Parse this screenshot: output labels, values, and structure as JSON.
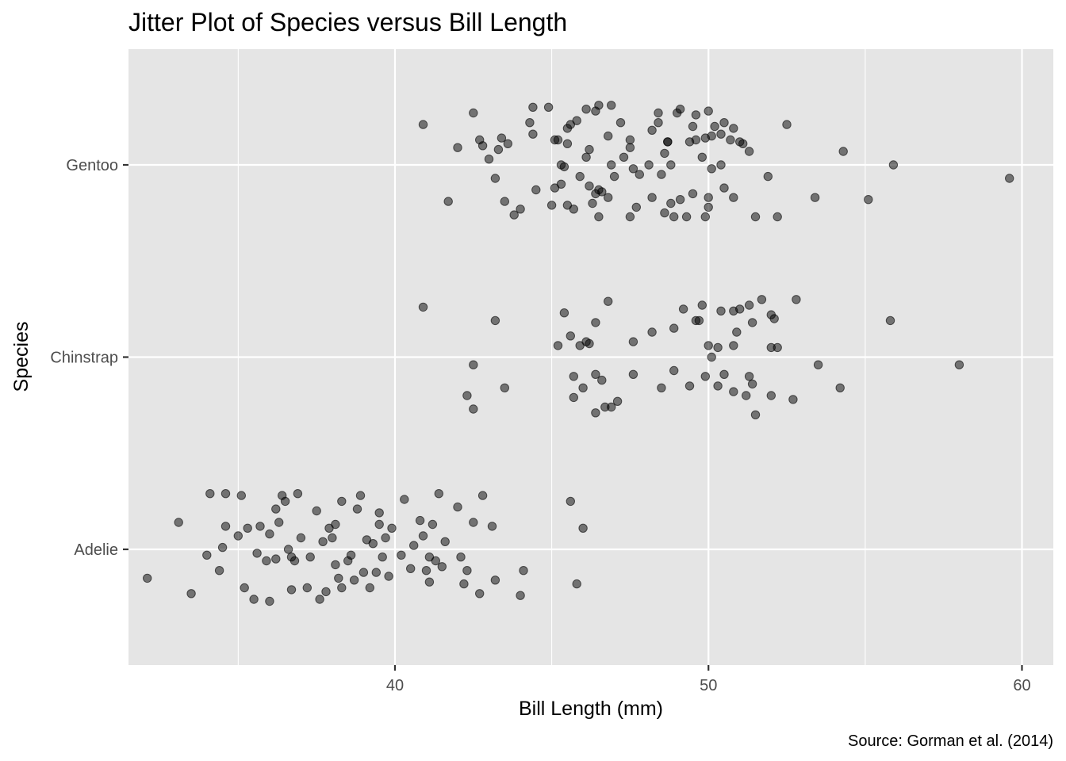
{
  "chart_data": {
    "type": "scatter",
    "title": "Jitter Plot of Species versus Bill Length",
    "xlabel": "Bill Length (mm)",
    "ylabel": "Species",
    "caption": "Source: Gorman et al. (2014)",
    "xlim": [
      31.5,
      61
    ],
    "x_ticks": [
      40,
      50,
      60
    ],
    "categories": [
      "Adelie",
      "Chinstrap",
      "Gentoo"
    ],
    "grid": true,
    "point_color": "#000000",
    "point_opacity": 0.5,
    "panel_background": "#e5e5e5",
    "grid_color": "#ffffff",
    "series": [
      {
        "category": "Gentoo",
        "points": [
          [
            40.9,
            0.21
          ],
          [
            42.5,
            0.27
          ],
          [
            44.4,
            0.3
          ],
          [
            44.9,
            0.3
          ],
          [
            46.5,
            0.31
          ],
          [
            46.9,
            0.31
          ],
          [
            46.1,
            0.29
          ],
          [
            46.4,
            0.28
          ],
          [
            48.4,
            0.27
          ],
          [
            49.0,
            0.27
          ],
          [
            49.1,
            0.29
          ],
          [
            50.0,
            0.28
          ],
          [
            49.6,
            0.26
          ],
          [
            48.4,
            0.22
          ],
          [
            47.2,
            0.22
          ],
          [
            45.6,
            0.21
          ],
          [
            45.8,
            0.23
          ],
          [
            44.3,
            0.22
          ],
          [
            44.4,
            0.16
          ],
          [
            45.5,
            0.19
          ],
          [
            46.8,
            0.15
          ],
          [
            48.2,
            0.18
          ],
          [
            48.7,
            0.12
          ],
          [
            49.5,
            0.2
          ],
          [
            50.2,
            0.2
          ],
          [
            50.5,
            0.22
          ],
          [
            50.8,
            0.19
          ],
          [
            51.1,
            0.11
          ],
          [
            52.5,
            0.21
          ],
          [
            54.3,
            0.07
          ],
          [
            55.9,
            0.0
          ],
          [
            59.6,
            -0.07
          ],
          [
            41.7,
            -0.19
          ],
          [
            42.0,
            0.09
          ],
          [
            42.7,
            0.13
          ],
          [
            42.8,
            0.1
          ],
          [
            43.0,
            0.03
          ],
          [
            43.2,
            -0.07
          ],
          [
            43.3,
            0.08
          ],
          [
            43.4,
            0.14
          ],
          [
            43.6,
            0.11
          ],
          [
            43.5,
            -0.19
          ],
          [
            43.8,
            -0.26
          ],
          [
            44.0,
            -0.23
          ],
          [
            44.5,
            -0.13
          ],
          [
            45.0,
            -0.21
          ],
          [
            45.1,
            0.13
          ],
          [
            45.2,
            0.13
          ],
          [
            45.3,
            0.0
          ],
          [
            45.4,
            -0.01
          ],
          [
            45.1,
            -0.12
          ],
          [
            45.3,
            -0.1
          ],
          [
            45.5,
            -0.21
          ],
          [
            45.7,
            -0.23
          ],
          [
            45.5,
            0.11
          ],
          [
            45.9,
            -0.06
          ],
          [
            46.1,
            0.04
          ],
          [
            46.2,
            0.08
          ],
          [
            46.2,
            -0.11
          ],
          [
            46.3,
            -0.2
          ],
          [
            46.5,
            -0.13
          ],
          [
            46.4,
            -0.15
          ],
          [
            46.5,
            -0.27
          ],
          [
            46.6,
            -0.14
          ],
          [
            46.9,
            0.0
          ],
          [
            47.0,
            -0.06
          ],
          [
            46.8,
            -0.17
          ],
          [
            47.3,
            0.04
          ],
          [
            47.5,
            0.09
          ],
          [
            47.5,
            0.13
          ],
          [
            47.6,
            -0.02
          ],
          [
            47.7,
            -0.22
          ],
          [
            47.8,
            -0.05
          ],
          [
            48.1,
            0.0
          ],
          [
            47.5,
            -0.27
          ],
          [
            48.2,
            -0.17
          ],
          [
            48.5,
            -0.05
          ],
          [
            48.6,
            0.06
          ],
          [
            48.7,
            0.12
          ],
          [
            48.8,
            0.0
          ],
          [
            48.8,
            -0.2
          ],
          [
            48.6,
            -0.25
          ],
          [
            48.9,
            -0.27
          ],
          [
            49.1,
            -0.18
          ],
          [
            49.3,
            -0.27
          ],
          [
            49.4,
            0.12
          ],
          [
            49.5,
            -0.15
          ],
          [
            49.6,
            0.13
          ],
          [
            49.8,
            0.04
          ],
          [
            49.9,
            0.14
          ],
          [
            50.1,
            0.15
          ],
          [
            50.0,
            -0.17
          ],
          [
            50.0,
            -0.22
          ],
          [
            50.1,
            -0.02
          ],
          [
            49.9,
            -0.27
          ],
          [
            50.4,
            0.16
          ],
          [
            50.4,
            0.0
          ],
          [
            50.5,
            -0.12
          ],
          [
            50.7,
            0.13
          ],
          [
            50.8,
            -0.17
          ],
          [
            51.0,
            0.12
          ],
          [
            51.3,
            0.07
          ],
          [
            51.5,
            -0.27
          ],
          [
            51.9,
            -0.06
          ],
          [
            52.2,
            -0.27
          ],
          [
            53.4,
            -0.17
          ],
          [
            55.1,
            -0.18
          ]
        ]
      },
      {
        "category": "Chinstrap",
        "points": [
          [
            40.9,
            0.26
          ],
          [
            43.2,
            0.19
          ],
          [
            42.5,
            -0.04
          ],
          [
            42.3,
            -0.2
          ],
          [
            42.5,
            -0.27
          ],
          [
            43.5,
            -0.16
          ],
          [
            45.2,
            0.06
          ],
          [
            45.4,
            0.23
          ],
          [
            45.6,
            0.11
          ],
          [
            45.7,
            -0.1
          ],
          [
            45.7,
            -0.21
          ],
          [
            45.9,
            0.06
          ],
          [
            46.0,
            -0.16
          ],
          [
            46.2,
            0.07
          ],
          [
            46.1,
            0.08
          ],
          [
            46.4,
            0.18
          ],
          [
            46.4,
            -0.09
          ],
          [
            46.4,
            -0.29
          ],
          [
            46.6,
            -0.12
          ],
          [
            46.7,
            -0.26
          ],
          [
            46.8,
            0.29
          ],
          [
            46.9,
            -0.26
          ],
          [
            47.1,
            -0.23
          ],
          [
            47.6,
            0.08
          ],
          [
            47.6,
            -0.09
          ],
          [
            48.2,
            0.13
          ],
          [
            48.5,
            -0.16
          ],
          [
            48.9,
            0.15
          ],
          [
            48.9,
            -0.07
          ],
          [
            49.2,
            0.25
          ],
          [
            49.4,
            -0.15
          ],
          [
            49.6,
            0.19
          ],
          [
            49.7,
            0.19
          ],
          [
            49.8,
            0.27
          ],
          [
            49.9,
            -0.1
          ],
          [
            50.0,
            0.06
          ],
          [
            50.1,
            0.0
          ],
          [
            50.3,
            0.05
          ],
          [
            50.3,
            -0.15
          ],
          [
            50.4,
            0.24
          ],
          [
            50.5,
            -0.09
          ],
          [
            50.8,
            0.24
          ],
          [
            50.8,
            0.06
          ],
          [
            50.8,
            -0.18
          ],
          [
            50.9,
            0.13
          ],
          [
            51.0,
            0.25
          ],
          [
            51.2,
            -0.2
          ],
          [
            51.3,
            0.27
          ],
          [
            51.3,
            -0.1
          ],
          [
            51.4,
            0.18
          ],
          [
            51.4,
            -0.14
          ],
          [
            51.5,
            -0.3
          ],
          [
            51.7,
            0.3
          ],
          [
            52.0,
            0.22
          ],
          [
            52.1,
            0.2
          ],
          [
            52.0,
            0.05
          ],
          [
            52.2,
            0.05
          ],
          [
            52.0,
            -0.2
          ],
          [
            52.7,
            -0.22
          ],
          [
            52.8,
            0.3
          ],
          [
            53.5,
            -0.04
          ],
          [
            54.2,
            -0.16
          ],
          [
            55.8,
            0.19
          ],
          [
            58.0,
            -0.04
          ]
        ]
      },
      {
        "category": "Adelie",
        "points": [
          [
            32.1,
            -0.15
          ],
          [
            33.1,
            0.14
          ],
          [
            33.5,
            -0.23
          ],
          [
            34.0,
            -0.03
          ],
          [
            34.1,
            0.29
          ],
          [
            34.4,
            -0.11
          ],
          [
            34.5,
            0.01
          ],
          [
            34.6,
            0.12
          ],
          [
            34.6,
            0.29
          ],
          [
            35.0,
            0.07
          ],
          [
            35.1,
            0.28
          ],
          [
            35.2,
            -0.2
          ],
          [
            35.3,
            0.11
          ],
          [
            35.5,
            -0.26
          ],
          [
            35.6,
            -0.02
          ],
          [
            35.7,
            0.12
          ],
          [
            35.9,
            -0.06
          ],
          [
            36.0,
            0.08
          ],
          [
            36.0,
            -0.27
          ],
          [
            36.2,
            -0.05
          ],
          [
            36.2,
            0.21
          ],
          [
            36.3,
            0.14
          ],
          [
            36.4,
            0.28
          ],
          [
            36.5,
            0.25
          ],
          [
            36.6,
            0.0
          ],
          [
            36.7,
            -0.04
          ],
          [
            36.7,
            -0.21
          ],
          [
            36.8,
            -0.06
          ],
          [
            36.9,
            0.29
          ],
          [
            37.0,
            0.06
          ],
          [
            37.2,
            -0.2
          ],
          [
            37.3,
            -0.04
          ],
          [
            37.5,
            0.2
          ],
          [
            37.6,
            -0.26
          ],
          [
            37.7,
            0.04
          ],
          [
            37.8,
            -0.22
          ],
          [
            37.9,
            0.11
          ],
          [
            38.0,
            0.06
          ],
          [
            38.1,
            0.13
          ],
          [
            38.1,
            -0.08
          ],
          [
            38.2,
            -0.15
          ],
          [
            38.3,
            -0.2
          ],
          [
            38.3,
            0.25
          ],
          [
            38.5,
            -0.06
          ],
          [
            38.6,
            -0.03
          ],
          [
            38.7,
            -0.16
          ],
          [
            38.8,
            0.21
          ],
          [
            38.9,
            0.28
          ],
          [
            39.0,
            -0.12
          ],
          [
            39.1,
            0.05
          ],
          [
            39.2,
            -0.2
          ],
          [
            39.3,
            0.03
          ],
          [
            39.4,
            -0.12
          ],
          [
            39.5,
            0.13
          ],
          [
            39.5,
            0.19
          ],
          [
            39.6,
            -0.04
          ],
          [
            39.7,
            0.06
          ],
          [
            39.8,
            -0.14
          ],
          [
            39.9,
            0.11
          ],
          [
            40.2,
            -0.03
          ],
          [
            40.3,
            0.26
          ],
          [
            40.5,
            -0.1
          ],
          [
            40.6,
            0.02
          ],
          [
            40.8,
            0.15
          ],
          [
            40.9,
            0.07
          ],
          [
            41.0,
            -0.11
          ],
          [
            41.1,
            -0.04
          ],
          [
            41.1,
            -0.17
          ],
          [
            41.2,
            0.13
          ],
          [
            41.3,
            -0.06
          ],
          [
            41.4,
            0.29
          ],
          [
            41.5,
            -0.09
          ],
          [
            41.6,
            0.04
          ],
          [
            42.0,
            0.22
          ],
          [
            42.1,
            -0.04
          ],
          [
            42.2,
            -0.18
          ],
          [
            42.3,
            -0.11
          ],
          [
            42.5,
            0.14
          ],
          [
            42.7,
            -0.23
          ],
          [
            42.8,
            0.28
          ],
          [
            43.1,
            0.12
          ],
          [
            43.2,
            -0.16
          ],
          [
            44.0,
            -0.24
          ],
          [
            44.1,
            -0.11
          ],
          [
            45.6,
            0.25
          ],
          [
            45.8,
            -0.18
          ],
          [
            46.0,
            0.11
          ]
        ]
      }
    ]
  }
}
